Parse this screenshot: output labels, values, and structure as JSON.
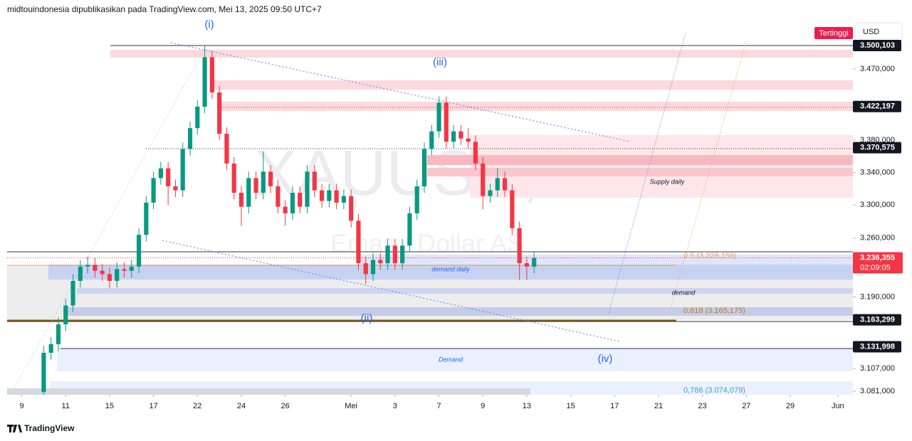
{
  "header": "midtouindonesia dipublikasikan pada TradingView.com, Mei 13, 2025 09:50 UTC+7",
  "button": "Tertinggi",
  "currency": "USD",
  "footer": "TradingView",
  "chart_data": {
    "type": "candlestick",
    "watermark": "XAUUSD, 4h",
    "watermark_sub": "Emas / Dollar AS",
    "log_scale": true,
    "grid": false,
    "up_color": "#089981",
    "down_color": "#f23645",
    "ylim": [
      3077,
      3550
    ],
    "xlim": [
      0,
      115.56
    ],
    "yticks": [
      {
        "value": 3470,
        "label": "3.470,000"
      },
      {
        "value": 3380,
        "label": "3.380,000"
      },
      {
        "value": 3340,
        "label": "3.340,000"
      },
      {
        "value": 3300,
        "label": "3.300,000"
      },
      {
        "value": 3260,
        "label": "3.260,000"
      },
      {
        "value": 3190,
        "label": "3.190,000"
      },
      {
        "value": 3107,
        "label": "3.107,000"
      },
      {
        "value": 3081,
        "label": "3.081,000"
      }
    ],
    "price_labels": [
      {
        "value": 3500.103,
        "label": "3.500,103"
      },
      {
        "value": 3422.197,
        "label": "3.422,197"
      },
      {
        "value": 3370.575,
        "label": "3.370,575"
      },
      {
        "value": 3163.299,
        "label": "3.163,299"
      },
      {
        "value": 3131.998,
        "label": "3.131,998"
      }
    ],
    "last_price": {
      "value": 3236.355,
      "label": "3.236,355",
      "countdown": "02:09:05"
    },
    "xticks": [
      {
        "value": 2,
        "label": "9"
      },
      {
        "value": 8,
        "label": "11"
      },
      {
        "value": 14,
        "label": "15"
      },
      {
        "value": 20,
        "label": "17"
      },
      {
        "value": 26,
        "label": "22"
      },
      {
        "value": 32,
        "label": "24"
      },
      {
        "value": 38,
        "label": "26"
      },
      {
        "value": 47,
        "label": "Mei"
      },
      {
        "value": 53,
        "label": "3"
      },
      {
        "value": 59,
        "label": "7"
      },
      {
        "value": 65,
        "label": "9"
      },
      {
        "value": 71,
        "label": "13"
      },
      {
        "value": 77,
        "label": "15"
      },
      {
        "value": 83,
        "label": "17"
      },
      {
        "value": 89,
        "label": "21"
      },
      {
        "value": 95,
        "label": "23"
      },
      {
        "value": 101,
        "label": "27"
      },
      {
        "value": 107,
        "label": "29"
      },
      {
        "value": 113.5,
        "label": "Jun"
      }
    ],
    "annotations": {
      "w1": "(i)",
      "w2": "(ii)",
      "w3": "(iii)",
      "w4": "(iv)",
      "supply": "Supply daily",
      "demand_daily": "demand daily",
      "demand": "demand",
      "demand2": "Demand",
      "fib05": "0.5 (3.229,159)",
      "fib618": "0,618 (3.165,175)",
      "fib786": "0,786 (3.074,079)"
    },
    "candles": [
      {
        "x": 5,
        "o": 3080,
        "h": 3133,
        "l": 3076,
        "c": 3125
      },
      {
        "x": 6,
        "o": 3125,
        "h": 3143,
        "l": 3117,
        "c": 3135
      },
      {
        "x": 7,
        "o": 3135,
        "h": 3166,
        "l": 3127,
        "c": 3158
      },
      {
        "x": 8,
        "o": 3158,
        "h": 3188,
        "l": 3150,
        "c": 3180
      },
      {
        "x": 9,
        "o": 3180,
        "h": 3217,
        "l": 3172,
        "c": 3209
      },
      {
        "x": 10,
        "o": 3209,
        "h": 3234,
        "l": 3201,
        "c": 3226
      },
      {
        "x": 11,
        "o": 3226,
        "h": 3238,
        "l": 3218,
        "c": 3228
      },
      {
        "x": 12,
        "o": 3228,
        "h": 3236,
        "l": 3213,
        "c": 3221
      },
      {
        "x": 13,
        "o": 3221,
        "h": 3229,
        "l": 3209,
        "c": 3217
      },
      {
        "x": 14,
        "o": 3217,
        "h": 3225,
        "l": 3200,
        "c": 3209
      },
      {
        "x": 15,
        "o": 3209,
        "h": 3231,
        "l": 3201,
        "c": 3223
      },
      {
        "x": 16,
        "o": 3223,
        "h": 3231,
        "l": 3213,
        "c": 3221
      },
      {
        "x": 17,
        "o": 3221,
        "h": 3234,
        "l": 3213,
        "c": 3226
      },
      {
        "x": 18,
        "o": 3226,
        "h": 3272,
        "l": 3218,
        "c": 3264
      },
      {
        "x": 19,
        "o": 3264,
        "h": 3311,
        "l": 3256,
        "c": 3303
      },
      {
        "x": 20,
        "o": 3303,
        "h": 3341,
        "l": 3295,
        "c": 3333
      },
      {
        "x": 21,
        "o": 3333,
        "h": 3353,
        "l": 3325,
        "c": 3345
      },
      {
        "x": 22,
        "o": 3345,
        "h": 3353,
        "l": 3300,
        "c": 3323
      },
      {
        "x": 23,
        "o": 3323,
        "h": 3331,
        "l": 3310,
        "c": 3318
      },
      {
        "x": 24,
        "o": 3318,
        "h": 3377,
        "l": 3310,
        "c": 3369
      },
      {
        "x": 25,
        "o": 3369,
        "h": 3403,
        "l": 3361,
        "c": 3395
      },
      {
        "x": 26,
        "o": 3395,
        "h": 3430,
        "l": 3387,
        "c": 3422
      },
      {
        "x": 27,
        "o": 3422,
        "h": 3500,
        "l": 3414,
        "c": 3485
      },
      {
        "x": 28,
        "o": 3485,
        "h": 3493,
        "l": 3432,
        "c": 3440
      },
      {
        "x": 29,
        "o": 3440,
        "h": 3448,
        "l": 3380,
        "c": 3388
      },
      {
        "x": 30,
        "o": 3388,
        "h": 3396,
        "l": 3343,
        "c": 3351
      },
      {
        "x": 31,
        "o": 3351,
        "h": 3359,
        "l": 3307,
        "c": 3315
      },
      {
        "x": 32,
        "o": 3315,
        "h": 3323,
        "l": 3275,
        "c": 3298
      },
      {
        "x": 33,
        "o": 3298,
        "h": 3341,
        "l": 3290,
        "c": 3333
      },
      {
        "x": 34,
        "o": 3333,
        "h": 3341,
        "l": 3307,
        "c": 3315
      },
      {
        "x": 35,
        "o": 3315,
        "h": 3366,
        "l": 3307,
        "c": 3341
      },
      {
        "x": 36,
        "o": 3341,
        "h": 3349,
        "l": 3315,
        "c": 3323
      },
      {
        "x": 37,
        "o": 3323,
        "h": 3331,
        "l": 3290,
        "c": 3298
      },
      {
        "x": 38,
        "o": 3298,
        "h": 3306,
        "l": 3275,
        "c": 3290
      },
      {
        "x": 39,
        "o": 3290,
        "h": 3323,
        "l": 3282,
        "c": 3315
      },
      {
        "x": 40,
        "o": 3315,
        "h": 3323,
        "l": 3290,
        "c": 3298
      },
      {
        "x": 41,
        "o": 3298,
        "h": 3349,
        "l": 3290,
        "c": 3341
      },
      {
        "x": 42,
        "o": 3341,
        "h": 3349,
        "l": 3310,
        "c": 3318
      },
      {
        "x": 43,
        "o": 3318,
        "h": 3326,
        "l": 3297,
        "c": 3305
      },
      {
        "x": 44,
        "o": 3305,
        "h": 3326,
        "l": 3297,
        "c": 3318
      },
      {
        "x": 45,
        "o": 3318,
        "h": 3326,
        "l": 3295,
        "c": 3303
      },
      {
        "x": 46,
        "o": 3303,
        "h": 3319,
        "l": 3295,
        "c": 3311
      },
      {
        "x": 47,
        "o": 3311,
        "h": 3319,
        "l": 3273,
        "c": 3281
      },
      {
        "x": 48,
        "o": 3281,
        "h": 3289,
        "l": 3222,
        "c": 3230
      },
      {
        "x": 49,
        "o": 3230,
        "h": 3238,
        "l": 3205,
        "c": 3217
      },
      {
        "x": 50,
        "o": 3217,
        "h": 3242,
        "l": 3209,
        "c": 3234
      },
      {
        "x": 51,
        "o": 3234,
        "h": 3242,
        "l": 3222,
        "c": 3230
      },
      {
        "x": 52,
        "o": 3230,
        "h": 3259,
        "l": 3222,
        "c": 3251
      },
      {
        "x": 53,
        "o": 3251,
        "h": 3259,
        "l": 3222,
        "c": 3230
      },
      {
        "x": 54,
        "o": 3230,
        "h": 3259,
        "l": 3222,
        "c": 3251
      },
      {
        "x": 55,
        "o": 3251,
        "h": 3298,
        "l": 3243,
        "c": 3290
      },
      {
        "x": 56,
        "o": 3290,
        "h": 3331,
        "l": 3282,
        "c": 3323
      },
      {
        "x": 57,
        "o": 3323,
        "h": 3377,
        "l": 3315,
        "c": 3369
      },
      {
        "x": 58,
        "o": 3369,
        "h": 3399,
        "l": 3361,
        "c": 3391
      },
      {
        "x": 59,
        "o": 3391,
        "h": 3435,
        "l": 3383,
        "c": 3427
      },
      {
        "x": 60,
        "o": 3427,
        "h": 3435,
        "l": 3370,
        "c": 3378
      },
      {
        "x": 61,
        "o": 3378,
        "h": 3399,
        "l": 3370,
        "c": 3391
      },
      {
        "x": 62,
        "o": 3391,
        "h": 3399,
        "l": 3374,
        "c": 3382
      },
      {
        "x": 63,
        "o": 3382,
        "h": 3395,
        "l": 3370,
        "c": 3378
      },
      {
        "x": 64,
        "o": 3378,
        "h": 3386,
        "l": 3343,
        "c": 3351
      },
      {
        "x": 65,
        "o": 3351,
        "h": 3359,
        "l": 3295,
        "c": 3311
      },
      {
        "x": 66,
        "o": 3311,
        "h": 3326,
        "l": 3303,
        "c": 3318
      },
      {
        "x": 67,
        "o": 3318,
        "h": 3345,
        "l": 3310,
        "c": 3333
      },
      {
        "x": 68,
        "o": 3333,
        "h": 3341,
        "l": 3310,
        "c": 3318
      },
      {
        "x": 69,
        "o": 3318,
        "h": 3326,
        "l": 3264,
        "c": 3272
      },
      {
        "x": 70,
        "o": 3272,
        "h": 3280,
        "l": 3210,
        "c": 3230
      },
      {
        "x": 71,
        "o": 3230,
        "h": 3238,
        "l": 3210,
        "c": 3226
      },
      {
        "x": 72,
        "o": 3226,
        "h": 3244,
        "l": 3218,
        "c": 3236
      }
    ]
  }
}
